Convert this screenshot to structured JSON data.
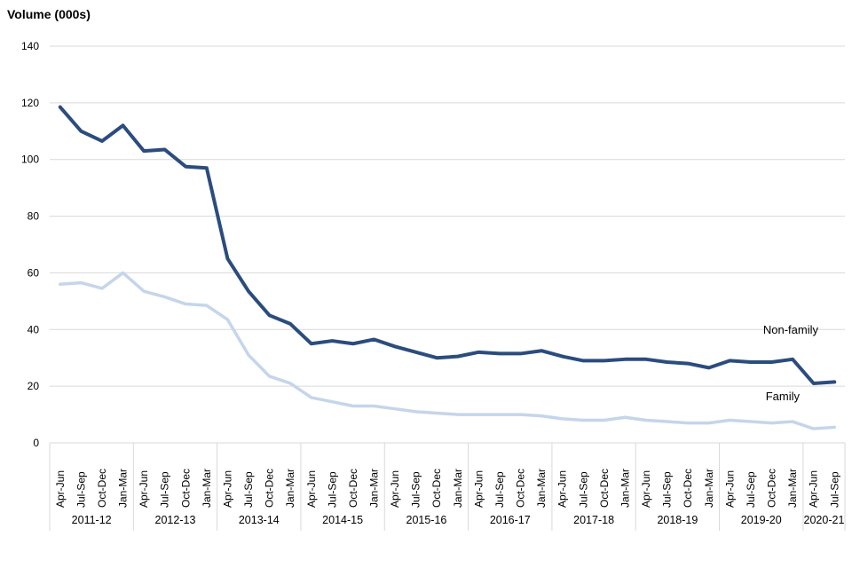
{
  "chart_data": {
    "type": "line",
    "title": "Volume (000s)",
    "ylabel": "Volume (000s)",
    "xlabel": "",
    "ylim": [
      0,
      140
    ],
    "y_ticks": [
      0,
      20,
      40,
      60,
      80,
      100,
      120,
      140
    ],
    "grid": true,
    "legend_position": "end-of-line-labels",
    "quarter_labels": [
      "Apr-Jun",
      "Jul-Sep",
      "Oct-Dec",
      "Jan-Mar"
    ],
    "years": [
      {
        "label": "2011-12",
        "quarters": 4
      },
      {
        "label": "2012-13",
        "quarters": 4
      },
      {
        "label": "2013-14",
        "quarters": 4
      },
      {
        "label": "2014-15",
        "quarters": 4
      },
      {
        "label": "2015-16",
        "quarters": 4
      },
      {
        "label": "2016-17",
        "quarters": 4
      },
      {
        "label": "2017-18",
        "quarters": 4
      },
      {
        "label": "2018-19",
        "quarters": 4
      },
      {
        "label": "2019-20",
        "quarters": 4
      },
      {
        "label": "2020-21",
        "quarters": 2
      }
    ],
    "series": [
      {
        "name": "Non-family",
        "color": "#2b4c7e",
        "values": [
          118.5,
          110,
          106.5,
          112,
          103,
          103.5,
          97.5,
          97,
          65,
          53.5,
          45,
          42,
          35,
          36,
          35,
          36.5,
          34,
          32,
          30,
          30.5,
          32,
          31.5,
          31.5,
          32.5,
          30.5,
          29,
          29,
          29.5,
          29.5,
          28.5,
          28,
          26.5,
          29,
          28.5,
          28.5,
          29.5,
          21,
          21.5
        ]
      },
      {
        "name": "Family",
        "color": "#c5d5ea",
        "values": [
          56,
          56.5,
          54.5,
          60,
          53.5,
          51.5,
          49,
          48.5,
          43.5,
          31,
          23.5,
          21,
          16,
          14.5,
          13,
          13,
          12,
          11,
          10.5,
          10,
          10,
          10,
          10,
          9.5,
          8.5,
          8,
          8,
          9,
          8,
          7.5,
          7,
          7,
          8,
          7.5,
          7,
          7.5,
          5,
          5.5
        ]
      }
    ]
  },
  "colors": {
    "grid": "#d9d9d9",
    "text": "#000000",
    "background": "#ffffff"
  }
}
